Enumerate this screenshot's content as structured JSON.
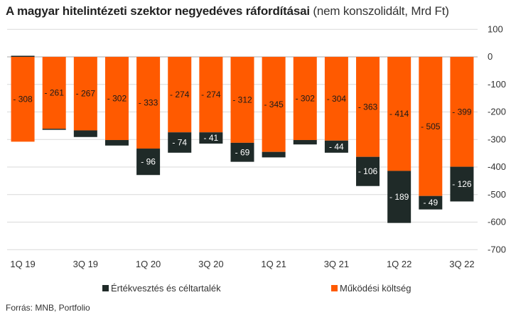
{
  "title_bold": "A magyar hitelintézeti szektor negyedéves ráfordításai",
  "title_rest": " (nem konszolidált, Mrd Ft)",
  "source": "Forrás: MNB, Portfolio",
  "colors": {
    "impairment": "#1f2a28",
    "operating": "#ff5a00",
    "grid": "#d9d9d9",
    "text": "#333333"
  },
  "chart_data": {
    "type": "bar",
    "stacked": true,
    "categories": [
      "1Q 19",
      "2Q 19",
      "3Q 19",
      "4Q 19",
      "1Q 20",
      "2Q 20",
      "3Q 20",
      "4Q 20",
      "1Q 21",
      "2Q 21",
      "3Q 21",
      "4Q 21",
      "1Q 22",
      "2Q 22",
      "3Q 22"
    ],
    "x_tick_labels": [
      "1Q 19",
      "",
      "3Q 19",
      "",
      "1Q 20",
      "",
      "3Q 20",
      "",
      "1Q 21",
      "",
      "3Q 21",
      "",
      "1Q 22",
      "",
      "3Q 22"
    ],
    "series": [
      {
        "name": "Működési költség",
        "values": [
          -308,
          -261,
          -267,
          -302,
          -333,
          -274,
          -274,
          -312,
          -345,
          -302,
          -304,
          -363,
          -414,
          -505,
          -399
        ],
        "labels": [
          "- 308",
          "- 261",
          "- 267",
          "- 302",
          "- 333",
          "- 274",
          "- 274",
          "- 312",
          "- 345",
          "- 302",
          "- 304",
          "- 363",
          "- 414",
          "- 505",
          "- 399"
        ]
      },
      {
        "name": "Értékvesztés és céltartalék",
        "values": [
          4,
          -4,
          -24,
          -20,
          -96,
          -74,
          -41,
          -69,
          -20,
          -16,
          -44,
          -106,
          -189,
          -49,
          -126
        ],
        "labels": [
          "",
          "",
          "",
          "",
          "- 96",
          "- 74",
          "- 41",
          "- 69",
          "",
          "",
          "- 44",
          "- 106",
          "- 189",
          "- 49",
          "- 126"
        ]
      }
    ],
    "ylim": [
      -700,
      100
    ],
    "y_ticks": [
      100,
      0,
      -100,
      -200,
      -300,
      -400,
      -500,
      -600,
      -700
    ],
    "y_tick_labels": [
      "100",
      "0",
      "-100",
      "-200",
      "-300",
      "-400",
      "-500",
      "-600",
      "-700"
    ],
    "y_axis_side": "right",
    "grid": true,
    "legend": [
      "Értékvesztés és céltartalék",
      "Működési költség"
    ],
    "legend_position": "bottom"
  }
}
